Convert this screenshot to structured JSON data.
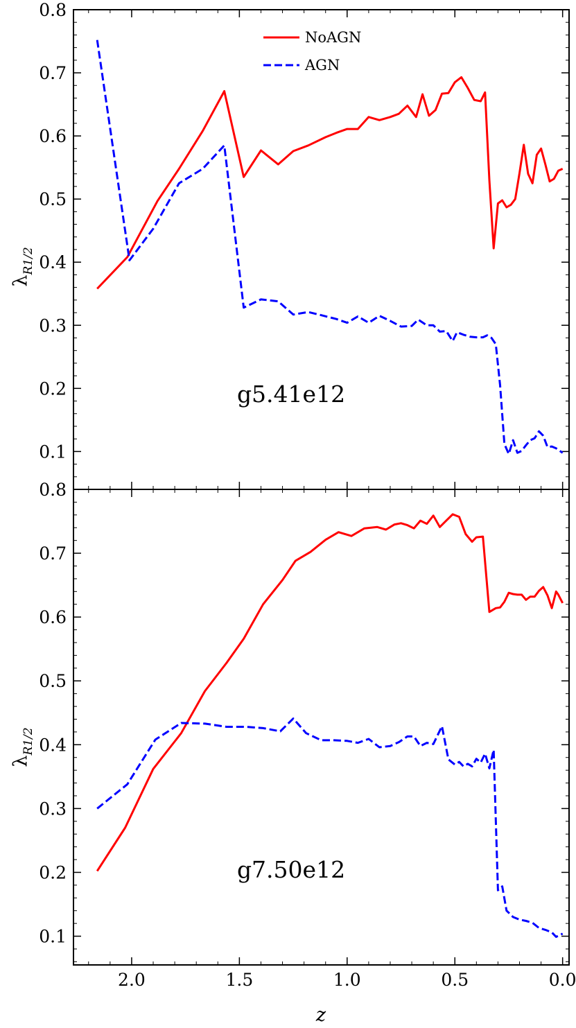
{
  "chart_data": {
    "type": "line",
    "xlabel": "z",
    "xlim": [
      2.27,
      -0.03
    ],
    "x_reversed": true,
    "x_ticks": [
      2.0,
      1.5,
      1.0,
      0.5,
      0.0
    ],
    "x_tick_labels": [
      "2.0",
      "1.5",
      "1.0",
      "0.5",
      "0.0"
    ],
    "legend": {
      "placement": "top-center",
      "entries": [
        {
          "label": "NoAGN",
          "color": "#ff0000",
          "dash": "solid"
        },
        {
          "label": "AGN",
          "color": "#0000ff",
          "dash": "dashed"
        }
      ]
    },
    "panels": [
      {
        "annotation": "g5.41e12",
        "ylabel": "λ",
        "ylabel_subscript": "R1/2",
        "ylim": [
          0.04,
          0.8
        ],
        "y_ticks": [
          0.1,
          0.2,
          0.3,
          0.4,
          0.5,
          0.6,
          0.7,
          0.8
        ],
        "y_tick_labels": [
          "0.1",
          "0.2",
          "0.3",
          "0.4",
          "0.5",
          "0.6",
          "0.7",
          "0.8"
        ],
        "series": [
          {
            "name": "NoAGN",
            "color": "#ff0000",
            "dash": "solid",
            "points": [
              [
                2.16,
                0.358
              ],
              [
                2.02,
                0.408
              ],
              [
                1.88,
                0.497
              ],
              [
                1.78,
                0.548
              ],
              [
                1.67,
                0.608
              ],
              [
                1.57,
                0.671
              ],
              [
                1.48,
                0.535
              ],
              [
                1.4,
                0.577
              ],
              [
                1.32,
                0.555
              ],
              [
                1.25,
                0.576
              ],
              [
                1.18,
                0.585
              ],
              [
                1.1,
                0.598
              ],
              [
                1.05,
                0.605
              ],
              [
                1.0,
                0.611
              ],
              [
                0.95,
                0.611
              ],
              [
                0.9,
                0.63
              ],
              [
                0.85,
                0.625
              ],
              [
                0.8,
                0.63
              ],
              [
                0.76,
                0.635
              ],
              [
                0.72,
                0.648
              ],
              [
                0.68,
                0.63
              ],
              [
                0.65,
                0.666
              ],
              [
                0.62,
                0.632
              ],
              [
                0.59,
                0.641
              ],
              [
                0.56,
                0.667
              ],
              [
                0.53,
                0.668
              ],
              [
                0.5,
                0.685
              ],
              [
                0.47,
                0.693
              ],
              [
                0.44,
                0.676
              ],
              [
                0.41,
                0.657
              ],
              [
                0.38,
                0.655
              ],
              [
                0.36,
                0.669
              ],
              [
                0.34,
                0.53
              ],
              [
                0.32,
                0.422
              ],
              [
                0.3,
                0.493
              ],
              [
                0.28,
                0.498
              ],
              [
                0.26,
                0.487
              ],
              [
                0.24,
                0.491
              ],
              [
                0.22,
                0.5
              ],
              [
                0.2,
                0.541
              ],
              [
                0.18,
                0.586
              ],
              [
                0.16,
                0.54
              ],
              [
                0.14,
                0.525
              ],
              [
                0.12,
                0.57
              ],
              [
                0.1,
                0.58
              ],
              [
                0.08,
                0.555
              ],
              [
                0.06,
                0.528
              ],
              [
                0.04,
                0.532
              ],
              [
                0.02,
                0.545
              ],
              [
                0.0,
                0.548
              ]
            ]
          },
          {
            "name": "AGN",
            "color": "#0000ff",
            "dash": "dashed",
            "points": [
              [
                2.16,
                0.752
              ],
              [
                2.01,
                0.403
              ],
              [
                1.9,
                0.453
              ],
              [
                1.78,
                0.525
              ],
              [
                1.67,
                0.548
              ],
              [
                1.57,
                0.585
              ],
              [
                1.48,
                0.328
              ],
              [
                1.4,
                0.341
              ],
              [
                1.32,
                0.338
              ],
              [
                1.25,
                0.317
              ],
              [
                1.18,
                0.321
              ],
              [
                1.12,
                0.316
              ],
              [
                1.05,
                0.31
              ],
              [
                1.0,
                0.304
              ],
              [
                0.95,
                0.314
              ],
              [
                0.9,
                0.304
              ],
              [
                0.85,
                0.315
              ],
              [
                0.8,
                0.307
              ],
              [
                0.75,
                0.298
              ],
              [
                0.7,
                0.299
              ],
              [
                0.67,
                0.309
              ],
              [
                0.63,
                0.3
              ],
              [
                0.6,
                0.3
              ],
              [
                0.57,
                0.29
              ],
              [
                0.54,
                0.291
              ],
              [
                0.51,
                0.275
              ],
              [
                0.49,
                0.289
              ],
              [
                0.46,
                0.285
              ],
              [
                0.43,
                0.282
              ],
              [
                0.4,
                0.281
              ],
              [
                0.37,
                0.281
              ],
              [
                0.35,
                0.284
              ],
              [
                0.33,
                0.28
              ],
              [
                0.31,
                0.27
              ],
              [
                0.29,
                0.205
              ],
              [
                0.27,
                0.112
              ],
              [
                0.25,
                0.096
              ],
              [
                0.23,
                0.118
              ],
              [
                0.21,
                0.098
              ],
              [
                0.19,
                0.101
              ],
              [
                0.17,
                0.11
              ],
              [
                0.15,
                0.118
              ],
              [
                0.13,
                0.121
              ],
              [
                0.11,
                0.132
              ],
              [
                0.09,
                0.125
              ],
              [
                0.07,
                0.107
              ],
              [
                0.05,
                0.108
              ],
              [
                0.03,
                0.105
              ],
              [
                0.0,
                0.098
              ]
            ]
          }
        ]
      },
      {
        "annotation": "g7.50e12",
        "ylabel": "λ",
        "ylabel_subscript": "R1/2",
        "ylim": [
          0.055,
          0.8
        ],
        "y_ticks": [
          0.1,
          0.2,
          0.3,
          0.4,
          0.5,
          0.6,
          0.7,
          0.8
        ],
        "y_tick_labels": [
          "0.1",
          "0.2",
          "0.3",
          "0.4",
          "0.5",
          "0.6",
          "0.7",
          "0.8"
        ],
        "series": [
          {
            "name": "NoAGN",
            "color": "#ff0000",
            "dash": "solid",
            "points": [
              [
                2.16,
                0.202
              ],
              [
                2.03,
                0.27
              ],
              [
                1.9,
                0.362
              ],
              [
                1.77,
                0.418
              ],
              [
                1.66,
                0.484
              ],
              [
                1.56,
                0.528
              ],
              [
                1.48,
                0.566
              ],
              [
                1.39,
                0.62
              ],
              [
                1.3,
                0.658
              ],
              [
                1.24,
                0.688
              ],
              [
                1.17,
                0.702
              ],
              [
                1.1,
                0.721
              ],
              [
                1.04,
                0.733
              ],
              [
                0.98,
                0.727
              ],
              [
                0.92,
                0.739
              ],
              [
                0.86,
                0.741
              ],
              [
                0.82,
                0.737
              ],
              [
                0.78,
                0.745
              ],
              [
                0.75,
                0.747
              ],
              [
                0.72,
                0.744
              ],
              [
                0.69,
                0.739
              ],
              [
                0.66,
                0.751
              ],
              [
                0.63,
                0.746
              ],
              [
                0.6,
                0.759
              ],
              [
                0.57,
                0.741
              ],
              [
                0.54,
                0.751
              ],
              [
                0.51,
                0.761
              ],
              [
                0.48,
                0.757
              ],
              [
                0.45,
                0.73
              ],
              [
                0.42,
                0.718
              ],
              [
                0.4,
                0.725
              ],
              [
                0.37,
                0.726
              ],
              [
                0.34,
                0.608
              ],
              [
                0.31,
                0.614
              ],
              [
                0.29,
                0.615
              ],
              [
                0.27,
                0.624
              ],
              [
                0.25,
                0.638
              ],
              [
                0.23,
                0.636
              ],
              [
                0.21,
                0.635
              ],
              [
                0.19,
                0.635
              ],
              [
                0.17,
                0.627
              ],
              [
                0.15,
                0.632
              ],
              [
                0.13,
                0.632
              ],
              [
                0.11,
                0.641
              ],
              [
                0.09,
                0.647
              ],
              [
                0.07,
                0.634
              ],
              [
                0.05,
                0.614
              ],
              [
                0.03,
                0.64
              ],
              [
                0.02,
                0.635
              ],
              [
                0.0,
                0.622
              ]
            ]
          },
          {
            "name": "AGN",
            "color": "#0000ff",
            "dash": "dashed",
            "points": [
              [
                2.16,
                0.3
              ],
              [
                2.02,
                0.338
              ],
              [
                1.89,
                0.408
              ],
              [
                1.77,
                0.434
              ],
              [
                1.66,
                0.433
              ],
              [
                1.56,
                0.428
              ],
              [
                1.47,
                0.428
              ],
              [
                1.39,
                0.426
              ],
              [
                1.31,
                0.421
              ],
              [
                1.25,
                0.441
              ],
              [
                1.19,
                0.418
              ],
              [
                1.12,
                0.407
              ],
              [
                1.06,
                0.407
              ],
              [
                1.0,
                0.406
              ],
              [
                0.95,
                0.403
              ],
              [
                0.9,
                0.409
              ],
              [
                0.85,
                0.396
              ],
              [
                0.8,
                0.398
              ],
              [
                0.76,
                0.404
              ],
              [
                0.72,
                0.413
              ],
              [
                0.69,
                0.413
              ],
              [
                0.66,
                0.398
              ],
              [
                0.63,
                0.403
              ],
              [
                0.6,
                0.401
              ],
              [
                0.56,
                0.429
              ],
              [
                0.53,
                0.377
              ],
              [
                0.5,
                0.369
              ],
              [
                0.48,
                0.373
              ],
              [
                0.46,
                0.366
              ],
              [
                0.44,
                0.37
              ],
              [
                0.42,
                0.366
              ],
              [
                0.4,
                0.378
              ],
              [
                0.38,
                0.372
              ],
              [
                0.36,
                0.386
              ],
              [
                0.34,
                0.363
              ],
              [
                0.32,
                0.392
              ],
              [
                0.3,
                0.172
              ],
              [
                0.28,
                0.178
              ],
              [
                0.26,
                0.14
              ],
              [
                0.23,
                0.13
              ],
              [
                0.2,
                0.126
              ],
              [
                0.17,
                0.124
              ],
              [
                0.14,
                0.121
              ],
              [
                0.11,
                0.113
              ],
              [
                0.08,
                0.11
              ],
              [
                0.05,
                0.106
              ],
              [
                0.03,
                0.099
              ],
              [
                0.0,
                0.104
              ]
            ]
          }
        ]
      }
    ]
  }
}
